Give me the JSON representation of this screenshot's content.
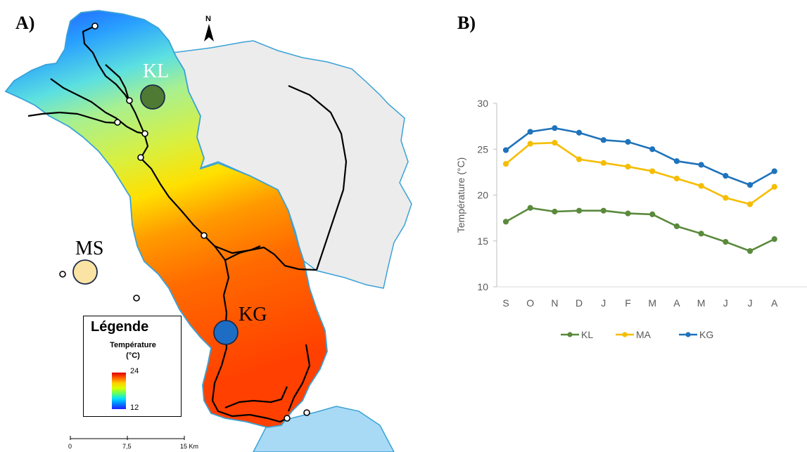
{
  "panels": {
    "a_label": "A)",
    "b_label": "B)"
  },
  "map": {
    "north_label": "N",
    "stations": [
      {
        "id": "KL",
        "label": "KL",
        "color": "#4e7a33"
      },
      {
        "id": "MS",
        "label": "MS",
        "color": "#fbe3a3"
      },
      {
        "id": "KG",
        "label": "KG",
        "color": "#1e6dc4"
      }
    ],
    "legend": {
      "title": "Légende",
      "subtitle_line1": "Température",
      "subtitle_line2": "(°C)",
      "max": "24",
      "min": "12"
    },
    "scale": {
      "ticks": [
        "0",
        "7,5",
        "15 Km"
      ]
    },
    "colors": {
      "catchment_outline": "#3aa2d6",
      "other_basin_fill": "#ececec",
      "lake_fill": "#a9daf5",
      "river": "#000000"
    }
  },
  "chart_data": {
    "type": "line",
    "title": "",
    "xlabel": "",
    "ylabel": "Température (°C)",
    "categories": [
      "S",
      "O",
      "N",
      "D",
      "J",
      "F",
      "M",
      "A",
      "M",
      "J",
      "J",
      "A"
    ],
    "ylim": [
      10,
      30
    ],
    "yticks": [
      10,
      15,
      20,
      25,
      30
    ],
    "grid": false,
    "legend_position": "bottom",
    "series": [
      {
        "name": "KL",
        "color": "#5a8a3c",
        "values": [
          17.1,
          18.6,
          18.2,
          18.3,
          18.3,
          18.0,
          17.9,
          16.6,
          15.8,
          14.9,
          13.9,
          15.2
        ]
      },
      {
        "name": "MA",
        "color": "#f5bd00",
        "values": [
          23.4,
          25.6,
          25.7,
          23.9,
          23.5,
          23.1,
          22.6,
          21.8,
          21.0,
          19.7,
          19.0,
          20.9
        ]
      },
      {
        "name": "KG",
        "color": "#1f73bb",
        "values": [
          24.9,
          26.9,
          27.3,
          26.8,
          26.0,
          25.8,
          25.0,
          23.7,
          23.3,
          22.1,
          21.1,
          22.6
        ]
      }
    ]
  }
}
